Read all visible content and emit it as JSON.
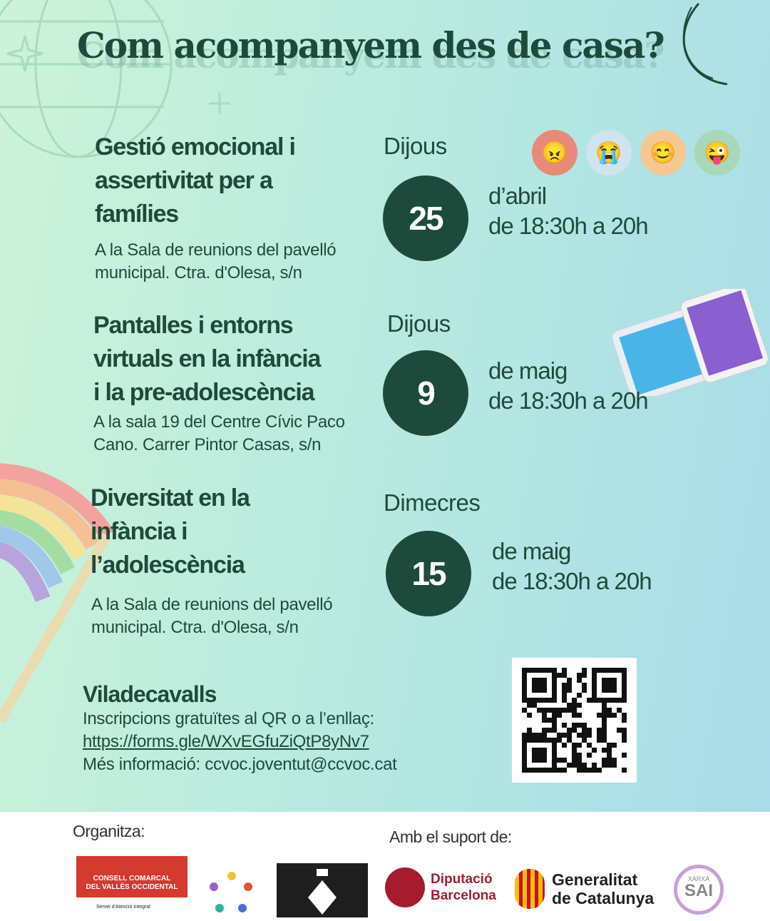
{
  "header": {
    "title": "Com acompanyem des de casa?"
  },
  "events": [
    {
      "title": [
        "Gestió emocional i",
        "assertivitat per a",
        "famílies"
      ],
      "location": [
        "A la Sala de reunions del pavelló",
        "municipal. Ctra. d'Olesa, s/n"
      ],
      "weekday": "Dijous",
      "day": "25",
      "month": "d’abril",
      "time": "de 18:30h a 20h"
    },
    {
      "title": [
        "Pantalles i entorns",
        "virtuals en la infància",
        "i la pre-adolescència"
      ],
      "location": [
        "A la sala 19 del Centre Cívic Paco",
        "Cano. Carrer Pintor Casas, s/n"
      ],
      "weekday": "Dijous",
      "day": "9",
      "month": "de maig",
      "time": "de 18:30h a 20h"
    },
    {
      "title": [
        "Diversitat en la",
        "infància i",
        "l’adolescència"
      ],
      "location": [
        "A la Sala de reunions del pavelló",
        "municipal. Ctra. d'Olesa, s/n"
      ],
      "weekday": "Dimecres",
      "day": "15",
      "month": "de maig",
      "time": "de 18:30h a 20h"
    }
  ],
  "info": {
    "town": "Viladecavalls",
    "registration": "Inscripcions gratuïtes al QR o a l’enllaç:",
    "link": "https://forms.gle/WXvEGfuZiQtP8yNv7",
    "more": "Més informació: ccvoc.joventut@ccvoc.cat"
  },
  "footer": {
    "organizes": "Organitza:",
    "support": "Amb el suport de:",
    "logos": {
      "consell": [
        "CONSELL COMARCAL",
        "DEL VALLÈS OCCIDENTAL"
      ],
      "consell_sub": "Servei d'Atenció Integral",
      "diputacio": [
        "Diputació",
        "Barcelona"
      ],
      "generalitat": [
        "Generalitat",
        "de Catalunya"
      ],
      "xarxa": "XARXA",
      "sai": "SAI"
    }
  },
  "colors": {
    "primary": "#1d4a3a",
    "bg_left": "#cdf3d9",
    "bg_right": "#a9dbe9",
    "consell_red": "#d43a2f",
    "diputacio_red": "#a51c30"
  }
}
